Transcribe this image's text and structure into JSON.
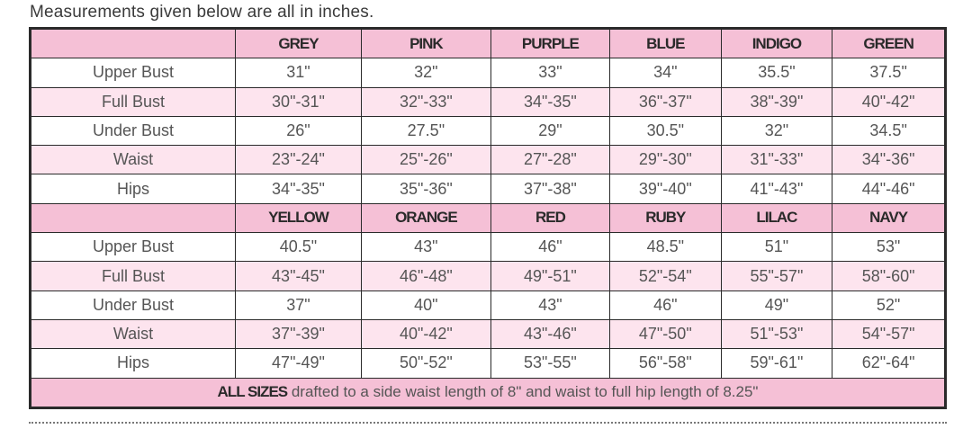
{
  "caption": "Measurements given below are all in inches.",
  "colors": {
    "header_bg": "#f5c0d6",
    "alt_row_bg": "#fde4ee",
    "border": "#2a2a2a"
  },
  "row_labels": [
    "Upper Bust",
    "Full Bust",
    "Under Bust",
    "Waist",
    "Hips"
  ],
  "groups": [
    {
      "sizes": [
        "GREY",
        "PINK",
        "PURPLE",
        "BLUE",
        "INDIGO",
        "GREEN"
      ],
      "rows": [
        [
          "31\"",
          "32\"",
          "33\"",
          "34\"",
          "35.5\"",
          "37.5\""
        ],
        [
          "30\"-31\"",
          "32\"-33\"",
          "34\"-35\"",
          "36\"-37\"",
          "38\"-39\"",
          "40\"-42\""
        ],
        [
          "26\"",
          "27.5\"",
          "29\"",
          "30.5\"",
          "32\"",
          "34.5\""
        ],
        [
          "23\"-24\"",
          "25\"-26\"",
          "27\"-28\"",
          "29\"-30\"",
          "31\"-33\"",
          "34\"-36\""
        ],
        [
          "34\"-35\"",
          "35\"-36\"",
          "37\"-38\"",
          "39\"-40\"",
          "41\"-43\"",
          "44\"-46\""
        ]
      ]
    },
    {
      "sizes": [
        "YELLOW",
        "ORANGE",
        "RED",
        "RUBY",
        "LILAC",
        "NAVY"
      ],
      "rows": [
        [
          "40.5\"",
          "43\"",
          "46\"",
          "48.5\"",
          "51\"",
          "53\""
        ],
        [
          "43\"-45\"",
          "46\"-48\"",
          "49\"-51\"",
          "52\"-54\"",
          "55\"-57\"",
          "58\"-60\""
        ],
        [
          "37\"",
          "40\"",
          "43\"",
          "46\"",
          "49\"",
          "52\""
        ],
        [
          "37\"-39\"",
          "40\"-42\"",
          "43\"-46\"",
          "47\"-50\"",
          "51\"-53\"",
          "54\"-57\""
        ],
        [
          "47\"-49\"",
          "50\"-52\"",
          "53\"-55\"",
          "56\"-58\"",
          "59\"-61\"",
          "62\"-64\""
        ]
      ]
    }
  ],
  "footer": {
    "bold": "ALL SIZES",
    "text": " drafted to a side waist length of 8\" and waist to full hip length of 8.25\""
  }
}
